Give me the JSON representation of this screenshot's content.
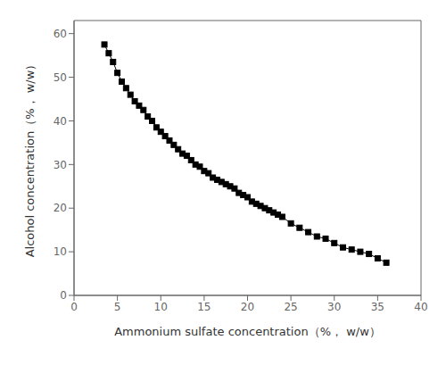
{
  "chart_data": {
    "type": "line",
    "x": [
      3.5,
      4.0,
      4.5,
      5.0,
      5.5,
      6.0,
      6.5,
      7.0,
      7.5,
      8.0,
      8.5,
      9.0,
      9.5,
      10.0,
      10.5,
      11.0,
      11.5,
      12.0,
      12.5,
      13.0,
      13.5,
      14.0,
      14.5,
      15.0,
      15.5,
      16.0,
      16.5,
      17.0,
      17.5,
      18.0,
      18.5,
      19.0,
      19.5,
      20.0,
      20.5,
      21.0,
      21.5,
      22.0,
      22.5,
      23.0,
      23.5,
      24.0,
      25.0,
      26.0,
      27.0,
      28.0,
      29.0,
      30.0,
      31.0,
      32.0,
      33.0,
      34.0,
      35.0,
      36.0
    ],
    "values": [
      57.5,
      55.5,
      53.5,
      51.0,
      49.0,
      47.5,
      46.0,
      44.5,
      43.5,
      42.5,
      41.0,
      40.0,
      38.5,
      37.5,
      36.5,
      35.5,
      34.5,
      33.5,
      32.5,
      32.0,
      31.0,
      30.0,
      29.5,
      28.5,
      28.0,
      27.0,
      26.5,
      26.0,
      25.5,
      25.0,
      24.5,
      23.5,
      23.0,
      22.5,
      21.5,
      21.0,
      20.5,
      20.0,
      19.5,
      19.0,
      18.5,
      18.0,
      16.5,
      15.5,
      14.5,
      13.5,
      13.0,
      12.0,
      11.0,
      10.5,
      10.0,
      9.5,
      8.5,
      7.5
    ],
    "xlabel": "Ammonium sulfate concentration（%， w/w）",
    "ylabel": "Alcohol concentration（%， w/w）",
    "xlim": [
      0,
      40
    ],
    "ylim": [
      0,
      63
    ],
    "xticks": [
      0,
      5,
      10,
      15,
      20,
      25,
      30,
      35,
      40
    ],
    "yticks": [
      0,
      10,
      20,
      30,
      40,
      50,
      60
    ],
    "color": "#000000",
    "marker": "square",
    "line_style": "solid",
    "grid": false
  }
}
